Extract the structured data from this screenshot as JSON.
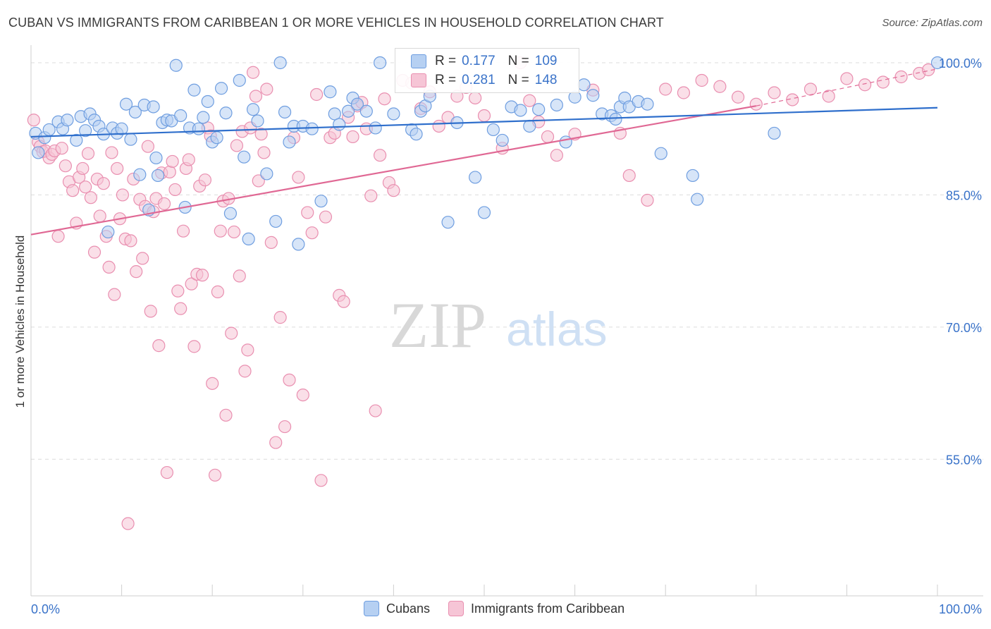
{
  "header": {
    "title": "CUBAN VS IMMIGRANTS FROM CARIBBEAN 1 OR MORE VEHICLES IN HOUSEHOLD CORRELATION CHART",
    "source": "Source: ZipAtlas.com"
  },
  "watermark": {
    "zip": "ZIP",
    "atlas": "atlas"
  },
  "legend_top": {
    "rows": [
      {
        "r_label": "R =",
        "r_value": "0.177",
        "n_label": "N =",
        "n_value": "109"
      },
      {
        "r_label": "R =",
        "r_value": "0.281",
        "n_label": "N =",
        "n_value": "148"
      }
    ]
  },
  "legend_bottom": {
    "items": [
      "Cubans",
      "Immigrants from Caribbean"
    ]
  },
  "colors": {
    "blue_fill": "#b6d0f2",
    "blue_stroke": "#6f9ee0",
    "blue_line": "#2f6fcc",
    "pink_fill": "#f6c5d6",
    "pink_stroke": "#e98fb0",
    "pink_line": "#e06894",
    "tick_text": "#3a73c9",
    "grid": "#dcdcdc"
  },
  "chart_data": {
    "type": "scatter",
    "title": "CUBAN VS IMMIGRANTS FROM CARIBBEAN 1 OR MORE VEHICLES IN HOUSEHOLD CORRELATION CHART",
    "xlabel": "",
    "ylabel": "1 or more Vehicles in Household",
    "xlim": [
      0,
      100
    ],
    "ylim": [
      39.5,
      102
    ],
    "x_tick_labels": [
      "0.0%",
      "100.0%"
    ],
    "y_ticks": [
      {
        "value": 100,
        "label": "100.0%"
      },
      {
        "value": 85,
        "label": "85.0%"
      },
      {
        "value": 70,
        "label": "70.0%"
      },
      {
        "value": 55,
        "label": "55.0%"
      }
    ],
    "grid": true,
    "legend_position": "top-center",
    "series": [
      {
        "name": "Cubans",
        "r": 0.177,
        "n": 109,
        "trend": {
          "x": [
            0,
            100
          ],
          "y": [
            91.6,
            94.9
          ]
        },
        "points": [
          [
            0.5,
            92
          ],
          [
            0.8,
            89.8
          ],
          [
            1.5,
            91.5
          ],
          [
            2,
            92.4
          ],
          [
            3,
            93.3
          ],
          [
            3.5,
            92.5
          ],
          [
            4,
            93.5
          ],
          [
            5,
            91.2
          ],
          [
            5.5,
            93.9
          ],
          [
            6,
            92.3
          ],
          [
            6.5,
            94.2
          ],
          [
            7,
            93.5
          ],
          [
            7.5,
            92.8
          ],
          [
            8,
            91.9
          ],
          [
            8.5,
            80.8
          ],
          [
            9,
            92.6
          ],
          [
            9.5,
            92
          ],
          [
            10,
            92.5
          ],
          [
            10.5,
            95.3
          ],
          [
            11,
            91.3
          ],
          [
            11.5,
            94.4
          ],
          [
            12,
            87.3
          ],
          [
            12.5,
            95.2
          ],
          [
            13,
            83.3
          ],
          [
            13.5,
            95
          ],
          [
            13.8,
            89.2
          ],
          [
            14,
            87.2
          ],
          [
            14.5,
            93.2
          ],
          [
            15,
            93.5
          ],
          [
            15.5,
            93.4
          ],
          [
            16,
            99.7
          ],
          [
            16.5,
            94
          ],
          [
            17,
            83.6
          ],
          [
            17.5,
            92.6
          ],
          [
            18,
            96.9
          ],
          [
            18.5,
            92.5
          ],
          [
            19,
            93.8
          ],
          [
            19.5,
            95.6
          ],
          [
            20,
            91
          ],
          [
            20.5,
            91.5
          ],
          [
            21,
            97.1
          ],
          [
            21.5,
            94.3
          ],
          [
            22,
            82.9
          ],
          [
            23,
            98
          ],
          [
            23.5,
            89.3
          ],
          [
            24,
            80
          ],
          [
            24.5,
            94.7
          ],
          [
            25,
            93.4
          ],
          [
            26,
            87.4
          ],
          [
            27,
            82
          ],
          [
            27.5,
            100
          ],
          [
            28,
            94.4
          ],
          [
            28.5,
            91
          ],
          [
            29,
            92.8
          ],
          [
            29.5,
            79.4
          ],
          [
            30,
            92.8
          ],
          [
            31,
            92.5
          ],
          [
            32,
            84.3
          ],
          [
            33,
            96.7
          ],
          [
            33.5,
            94.2
          ],
          [
            34,
            93
          ],
          [
            35,
            94.5
          ],
          [
            35.5,
            96
          ],
          [
            36,
            95.3
          ],
          [
            37,
            94.5
          ],
          [
            38,
            92.6
          ],
          [
            38.5,
            100
          ],
          [
            40,
            94.2
          ],
          [
            42,
            92.4
          ],
          [
            42.5,
            91.9
          ],
          [
            43,
            94.5
          ],
          [
            43.5,
            95.1
          ],
          [
            44,
            96.2
          ],
          [
            46,
            81.9
          ],
          [
            47,
            93.2
          ],
          [
            49,
            87
          ],
          [
            50,
            83
          ],
          [
            51,
            92.4
          ],
          [
            52,
            91.2
          ],
          [
            53,
            95
          ],
          [
            54,
            94.6
          ],
          [
            55,
            92.8
          ],
          [
            56,
            94.7
          ],
          [
            58,
            95.2
          ],
          [
            59,
            91
          ],
          [
            60,
            96.1
          ],
          [
            61,
            97.5
          ],
          [
            62,
            96.3
          ],
          [
            63,
            94.2
          ],
          [
            64,
            94
          ],
          [
            64.5,
            93.6
          ],
          [
            65,
            95
          ],
          [
            65.5,
            96
          ],
          [
            66,
            95
          ],
          [
            67,
            95.6
          ],
          [
            68,
            95.3
          ],
          [
            69.5,
            89.7
          ],
          [
            73,
            87.2
          ],
          [
            73.5,
            84.5
          ],
          [
            82,
            92
          ],
          [
            100,
            100
          ]
        ]
      },
      {
        "name": "Immigrants from Caribbean",
        "r": 0.281,
        "n": 148,
        "trend": {
          "x": [
            0,
            80
          ],
          "y": [
            80.5,
            95.1
          ]
        },
        "trend_dashed": {
          "x": [
            80,
            100
          ],
          "y": [
            95.1,
            99.3
          ]
        },
        "points": [
          [
            0.3,
            93.5
          ],
          [
            0.8,
            91
          ],
          [
            1,
            90.5
          ],
          [
            1.3,
            89.9
          ],
          [
            1.6,
            90
          ],
          [
            2,
            89.2
          ],
          [
            2.3,
            89.6
          ],
          [
            2.6,
            90
          ],
          [
            3,
            80.3
          ],
          [
            3.4,
            90.3
          ],
          [
            3.8,
            88.3
          ],
          [
            4.2,
            86.5
          ],
          [
            4.6,
            85.5
          ],
          [
            5,
            81.8
          ],
          [
            5.3,
            87
          ],
          [
            5.7,
            88
          ],
          [
            6,
            85.9
          ],
          [
            6.3,
            89.7
          ],
          [
            6.6,
            84.7
          ],
          [
            7,
            78.5
          ],
          [
            7.3,
            86.8
          ],
          [
            7.6,
            82.6
          ],
          [
            8,
            86.3
          ],
          [
            8.3,
            80.3
          ],
          [
            8.6,
            76.8
          ],
          [
            8.9,
            89.8
          ],
          [
            9.2,
            73.7
          ],
          [
            9.5,
            88
          ],
          [
            9.8,
            82.3
          ],
          [
            10.1,
            85
          ],
          [
            10.4,
            80
          ],
          [
            10.7,
            47.7
          ],
          [
            11,
            79.8
          ],
          [
            11.3,
            86.8
          ],
          [
            11.6,
            76.3
          ],
          [
            12,
            84.5
          ],
          [
            12.3,
            77.8
          ],
          [
            12.6,
            83.7
          ],
          [
            12.9,
            90.5
          ],
          [
            13.2,
            71.8
          ],
          [
            13.5,
            83.1
          ],
          [
            13.8,
            84.6
          ],
          [
            14.1,
            67.9
          ],
          [
            14.4,
            87.5
          ],
          [
            14.7,
            84
          ],
          [
            15,
            53.5
          ],
          [
            15.3,
            87.6
          ],
          [
            15.6,
            88.8
          ],
          [
            15.9,
            85.6
          ],
          [
            16.2,
            74.1
          ],
          [
            16.5,
            72.1
          ],
          [
            16.8,
            80.9
          ],
          [
            17.1,
            88
          ],
          [
            17.4,
            89
          ],
          [
            17.7,
            74.9
          ],
          [
            18,
            67.8
          ],
          [
            18.3,
            76
          ],
          [
            18.6,
            86
          ],
          [
            18.9,
            75.9
          ],
          [
            19.2,
            86.7
          ],
          [
            19.5,
            92.6
          ],
          [
            19.8,
            91.7
          ],
          [
            20,
            63.6
          ],
          [
            20.3,
            53.2
          ],
          [
            20.6,
            74
          ],
          [
            20.9,
            80.9
          ],
          [
            21.2,
            84.3
          ],
          [
            21.5,
            60
          ],
          [
            21.8,
            84.6
          ],
          [
            22.1,
            69.3
          ],
          [
            22.4,
            80.8
          ],
          [
            22.7,
            90.6
          ],
          [
            23,
            75.8
          ],
          [
            23.3,
            92.2
          ],
          [
            23.6,
            65
          ],
          [
            23.9,
            67.4
          ],
          [
            24.2,
            92.6
          ],
          [
            24.5,
            98.9
          ],
          [
            24.8,
            96.2
          ],
          [
            25.1,
            86.6
          ],
          [
            25.4,
            91.9
          ],
          [
            25.7,
            89.8
          ],
          [
            26,
            97
          ],
          [
            26.5,
            79.6
          ],
          [
            27,
            56.9
          ],
          [
            27.5,
            71.1
          ],
          [
            28,
            58.7
          ],
          [
            28.5,
            64
          ],
          [
            29,
            91.5
          ],
          [
            29.5,
            87
          ],
          [
            30,
            62.3
          ],
          [
            30.5,
            83
          ],
          [
            31,
            80.7
          ],
          [
            31.5,
            96.4
          ],
          [
            32,
            52.6
          ],
          [
            32.5,
            82.5
          ],
          [
            33,
            91.5
          ],
          [
            33.5,
            92
          ],
          [
            34,
            73.6
          ],
          [
            34.5,
            72.9
          ],
          [
            35,
            93.8
          ],
          [
            35.5,
            91.6
          ],
          [
            36,
            95.1
          ],
          [
            36.5,
            95.5
          ],
          [
            37,
            92.5
          ],
          [
            37.5,
            84.9
          ],
          [
            38,
            60.5
          ],
          [
            38.5,
            89.5
          ],
          [
            39,
            95.9
          ],
          [
            39.5,
            86.4
          ],
          [
            40,
            85.5
          ],
          [
            41,
            98
          ],
          [
            42,
            97.7
          ],
          [
            43,
            94.8
          ],
          [
            44,
            96.7
          ],
          [
            45,
            92.8
          ],
          [
            46,
            93.8
          ],
          [
            47,
            96.2
          ],
          [
            48,
            97.2
          ],
          [
            49,
            96
          ],
          [
            50,
            94
          ],
          [
            52,
            90.3
          ],
          [
            54,
            100
          ],
          [
            55,
            95.7
          ],
          [
            56,
            93.3
          ],
          [
            57,
            91.6
          ],
          [
            58,
            89.5
          ],
          [
            60,
            91.9
          ],
          [
            62,
            96.9
          ],
          [
            65,
            92
          ],
          [
            66,
            87.2
          ],
          [
            68,
            84.4
          ],
          [
            70,
            97
          ],
          [
            72,
            96.6
          ],
          [
            74,
            98
          ],
          [
            76,
            97.3
          ],
          [
            78,
            96.1
          ],
          [
            80,
            95.3
          ],
          [
            82,
            96.6
          ],
          [
            84,
            95.8
          ],
          [
            86,
            97
          ],
          [
            88,
            96.2
          ],
          [
            90,
            98.2
          ],
          [
            92,
            97.5
          ],
          [
            94,
            97.8
          ],
          [
            96,
            98.4
          ],
          [
            98,
            98.8
          ],
          [
            99,
            99.2
          ]
        ]
      }
    ]
  }
}
